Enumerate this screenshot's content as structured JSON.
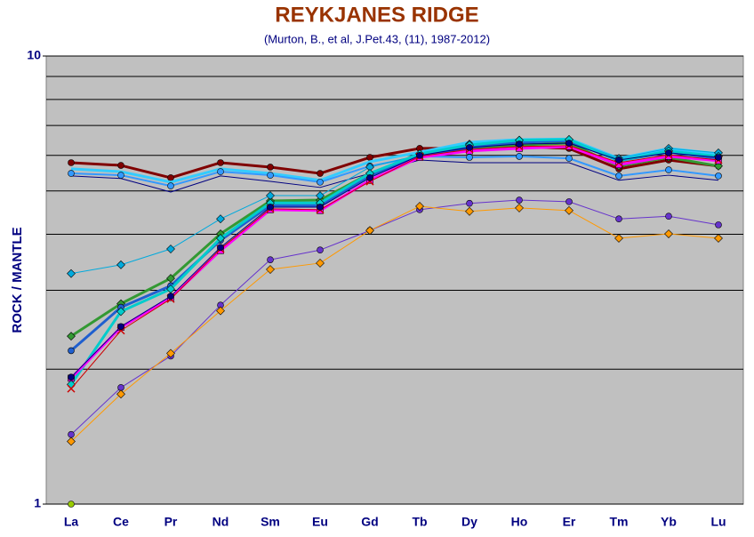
{
  "chart_data": {
    "type": "line",
    "title": "REYKJANES RIDGE",
    "subtitle": "(Murton, B., et al, J.Pet.43, (11), 1987-2012)",
    "y_label": "ROCK / MANTLE",
    "categories": [
      "La",
      "Ce",
      "Pr",
      "Nd",
      "Sm",
      "Eu",
      "Gd",
      "Tb",
      "Dy",
      "Ho",
      "Er",
      "Tm",
      "Yb",
      "Lu"
    ],
    "log_scale": true,
    "ylim": [
      1,
      10
    ],
    "yticks": [
      1,
      10
    ],
    "grid": true,
    "minor_grid": [
      2,
      3,
      4,
      5,
      6,
      7,
      8,
      9
    ],
    "series": [
      {
        "color": "#800000",
        "width": 3,
        "marker": "circle",
        "values": [
          5.78,
          5.7,
          5.35,
          5.78,
          5.65,
          5.47,
          5.94,
          6.22,
          6.22,
          6.28,
          6.22,
          5.6,
          5.86,
          5.68
        ]
      },
      {
        "color": "#000080",
        "width": 1,
        "marker": "none",
        "values": [
          5.4,
          5.33,
          4.97,
          5.4,
          5.25,
          5.09,
          5.47,
          5.86,
          5.78,
          5.78,
          5.78,
          5.28,
          5.42,
          5.28
        ]
      },
      {
        "color": "#33ccff",
        "width": 3,
        "marker": "none",
        "values": [
          5.6,
          5.52,
          5.23,
          5.6,
          5.47,
          5.28,
          5.81,
          6.1,
          6.42,
          6.51,
          6.53,
          5.91,
          6.22,
          6.05
        ]
      },
      {
        "color": "#3399ff",
        "width": 2,
        "marker": "circle",
        "values": [
          5.47,
          5.42,
          5.13,
          5.52,
          5.42,
          5.23,
          5.68,
          5.97,
          5.94,
          5.97,
          5.91,
          5.4,
          5.57,
          5.4
        ]
      },
      {
        "color": "#339933",
        "width": 3,
        "marker": "diamond",
        "values": [
          2.37,
          2.8,
          3.19,
          4.01,
          4.75,
          4.77,
          5.47,
          6.02,
          6.19,
          6.33,
          6.39,
          5.68,
          5.94,
          5.68
        ]
      },
      {
        "color": "#00aadd",
        "width": 1,
        "marker": "diamond",
        "values": [
          3.27,
          3.42,
          3.71,
          4.33,
          4.88,
          4.88,
          5.65,
          6.02,
          6.36,
          6.49,
          6.51,
          5.91,
          6.22,
          6.08
        ]
      },
      {
        "color": "#1f5fcf",
        "width": 3,
        "marker": "circle",
        "values": [
          2.2,
          2.75,
          3.07,
          3.88,
          4.64,
          4.64,
          5.4,
          5.97,
          6.25,
          6.42,
          6.47,
          5.84,
          6.1,
          5.91
        ]
      },
      {
        "color": "#00cccc",
        "width": 3,
        "marker": "diamond",
        "values": [
          1.85,
          2.69,
          3.02,
          3.92,
          4.7,
          4.7,
          5.47,
          6.05,
          6.33,
          6.49,
          6.51,
          5.84,
          6.14,
          5.97
        ]
      },
      {
        "color": "#ff00ff",
        "width": 3,
        "marker": "square",
        "values": [
          1.91,
          2.48,
          2.89,
          3.68,
          4.54,
          4.52,
          5.28,
          5.94,
          6.14,
          6.22,
          6.28,
          5.72,
          5.97,
          5.84
        ]
      },
      {
        "color": "#cc0000",
        "width": 1,
        "marker": "x",
        "values": [
          1.81,
          2.44,
          2.87,
          3.71,
          4.56,
          4.54,
          5.25,
          5.97,
          6.19,
          6.28,
          6.31,
          5.78,
          6.02,
          5.86
        ]
      },
      {
        "color": "#000080",
        "width": 1,
        "marker": "circle",
        "values": [
          1.92,
          2.49,
          2.91,
          3.74,
          4.6,
          4.6,
          5.35,
          6.0,
          6.25,
          6.36,
          6.39,
          5.86,
          6.08,
          5.94
        ]
      },
      {
        "color": "#6633cc",
        "width": 1,
        "marker": "circle",
        "values": [
          1.43,
          1.82,
          2.14,
          2.78,
          3.51,
          3.69,
          4.08,
          4.54,
          4.69,
          4.77,
          4.73,
          4.33,
          4.39,
          4.2
        ]
      },
      {
        "color": "#ff9900",
        "width": 1,
        "marker": "diamond",
        "values": [
          1.38,
          1.76,
          2.17,
          2.7,
          3.34,
          3.45,
          4.08,
          4.62,
          4.5,
          4.58,
          4.52,
          3.92,
          4.01,
          3.92
        ]
      },
      {
        "color": "#99cc00",
        "width": 1,
        "marker": "circle",
        "values": [
          1.0,
          null,
          null,
          null,
          null,
          null,
          null,
          null,
          null,
          null,
          null,
          null,
          null,
          null
        ]
      }
    ]
  }
}
